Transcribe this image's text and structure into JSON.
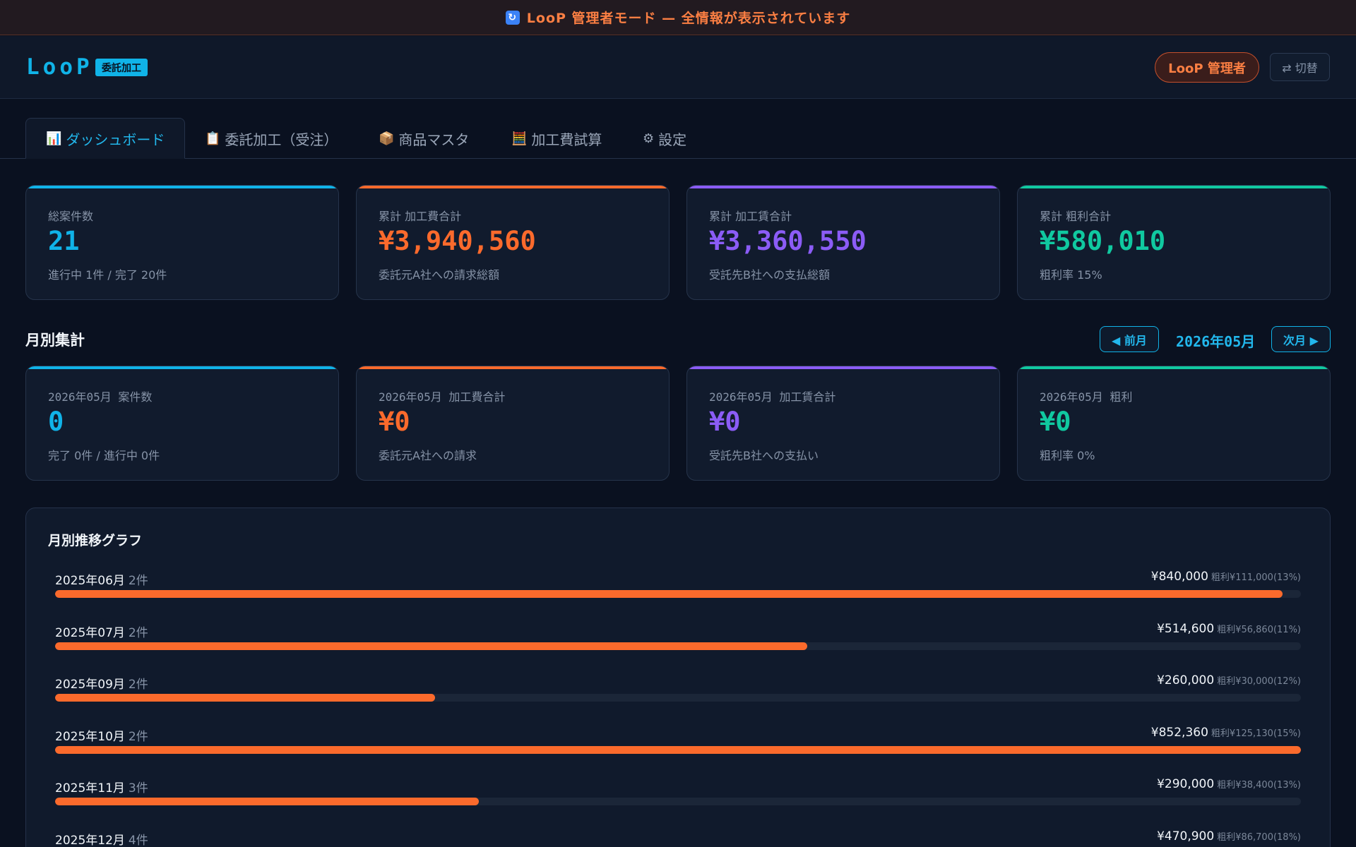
{
  "banner": {
    "icon": "refresh-icon",
    "text": "LooP 管理者モード — 全情報が表示されています"
  },
  "header": {
    "logo": "LooP",
    "badge": "委託加工",
    "admin_label": "LooP 管理者",
    "switch_label": "⇄ 切替"
  },
  "tabs": [
    {
      "icon": "📊",
      "label": "ダッシュボード",
      "active": true
    },
    {
      "icon": "📋",
      "label": "委託加工（受注）",
      "active": false
    },
    {
      "icon": "📦",
      "label": "商品マスタ",
      "active": false
    },
    {
      "icon": "🧮",
      "label": "加工費試算",
      "active": false
    },
    {
      "icon": "⚙",
      "label": "設定",
      "active": false
    }
  ],
  "summary_cards": [
    {
      "label": "総案件数",
      "value": "21",
      "sub": "進行中 1件 / 完了 20件",
      "accent": "#10b3e8"
    },
    {
      "label": "累計 加工費合計",
      "value": "¥3,940,560",
      "sub": "委託元A社への請求総額",
      "accent": "#fb6a2c"
    },
    {
      "label": "累計 加工賃合計",
      "value": "¥3,360,550",
      "sub": "受託先B社への支払総額",
      "accent": "#8b5cf6"
    },
    {
      "label": "累計 粗利合計",
      "value": "¥580,010",
      "sub": "粗利率 15%",
      "accent": "#10c9a0"
    }
  ],
  "monthly": {
    "title": "月別集計",
    "prev_label": "◀ 前月",
    "next_label": "次月 ▶",
    "current_month": "2026年05月",
    "cards": [
      {
        "label": "2026年05月 案件数",
        "value": "0",
        "sub": "完了 0件 / 進行中 0件",
        "accent": "#10b3e8"
      },
      {
        "label": "2026年05月 加工費合計",
        "value": "¥0",
        "sub": "委託元A社への請求",
        "accent": "#fb6a2c"
      },
      {
        "label": "2026年05月 加工賃合計",
        "value": "¥0",
        "sub": "受託先B社への支払い",
        "accent": "#8b5cf6"
      },
      {
        "label": "2026年05月 粗利",
        "value": "¥0",
        "sub": "粗利率 0%",
        "accent": "#10c9a0"
      }
    ]
  },
  "chart_data": {
    "type": "bar",
    "title": "月別推移グラフ",
    "max_value": 852360,
    "rows": [
      {
        "month": "2025年06月",
        "count": "2件",
        "amount": "¥840,000",
        "profit": "粗利¥111,000(13%)",
        "value": 840000
      },
      {
        "month": "2025年07月",
        "count": "2件",
        "amount": "¥514,600",
        "profit": "粗利¥56,860(11%)",
        "value": 514600
      },
      {
        "month": "2025年09月",
        "count": "2件",
        "amount": "¥260,000",
        "profit": "粗利¥30,000(12%)",
        "value": 260000
      },
      {
        "month": "2025年10月",
        "count": "2件",
        "amount": "¥852,360",
        "profit": "粗利¥125,130(15%)",
        "value": 852360
      },
      {
        "month": "2025年11月",
        "count": "3件",
        "amount": "¥290,000",
        "profit": "粗利¥38,400(13%)",
        "value": 290000
      },
      {
        "month": "2025年12月",
        "count": "4件",
        "amount": "¥470,900",
        "profit": "粗利¥86,700(18%)",
        "value": 470900
      }
    ]
  }
}
